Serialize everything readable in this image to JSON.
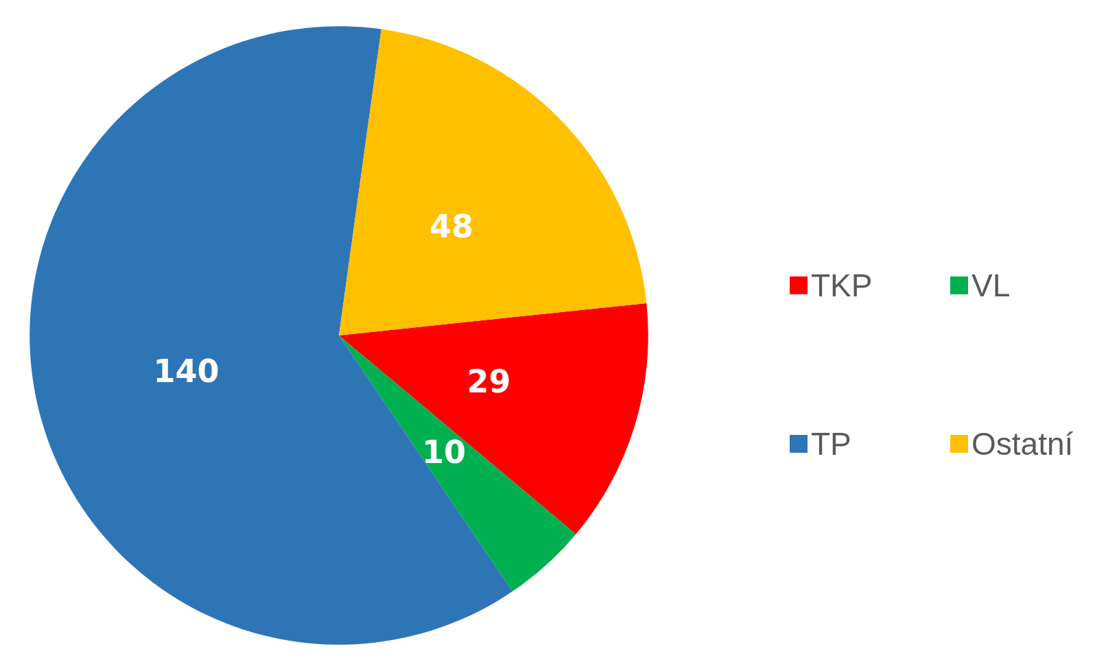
{
  "chart_data": {
    "type": "pie",
    "categories": [
      "TKP",
      "VL",
      "TP",
      "Ostatní"
    ],
    "values": [
      29,
      10,
      140,
      48
    ],
    "colors": [
      "#ff0000",
      "#00b050",
      "#2e75b6",
      "#ffc000"
    ],
    "data_labels": true,
    "legend": "right"
  }
}
